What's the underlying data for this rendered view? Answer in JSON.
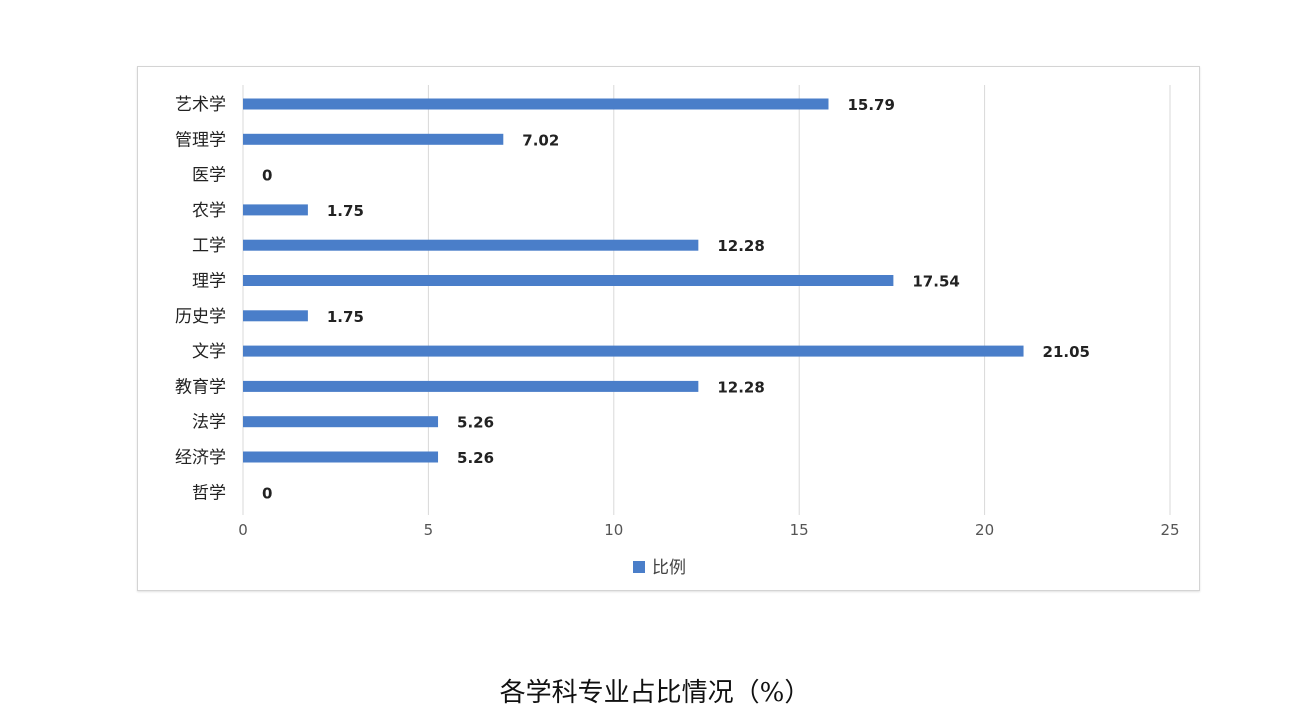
{
  "chart_data": {
    "type": "bar",
    "orientation": "horizontal",
    "categories": [
      "艺术学",
      "管理学",
      "医学",
      "农学",
      "工学",
      "理学",
      "历史学",
      "文学",
      "教育学",
      "法学",
      "经济学",
      "哲学"
    ],
    "series": [
      {
        "name": "比例",
        "values": [
          15.79,
          7.02,
          0,
          1.75,
          12.28,
          17.54,
          1.75,
          21.05,
          12.28,
          5.26,
          5.26,
          0
        ],
        "labels": [
          "15.79",
          "7.02",
          "0",
          "1.75",
          "12.28",
          "17.54",
          "1.75",
          "21.05",
          "12.28",
          "5.26",
          "5.26",
          "0"
        ]
      }
    ],
    "xlim": [
      0,
      25
    ],
    "xticks": [
      0,
      5,
      10,
      15,
      20,
      25
    ],
    "grid": "vertical",
    "legend": "bottom-center",
    "bar_color": "#4a7ec9",
    "caption": "各学科专业占比情况（%）"
  }
}
